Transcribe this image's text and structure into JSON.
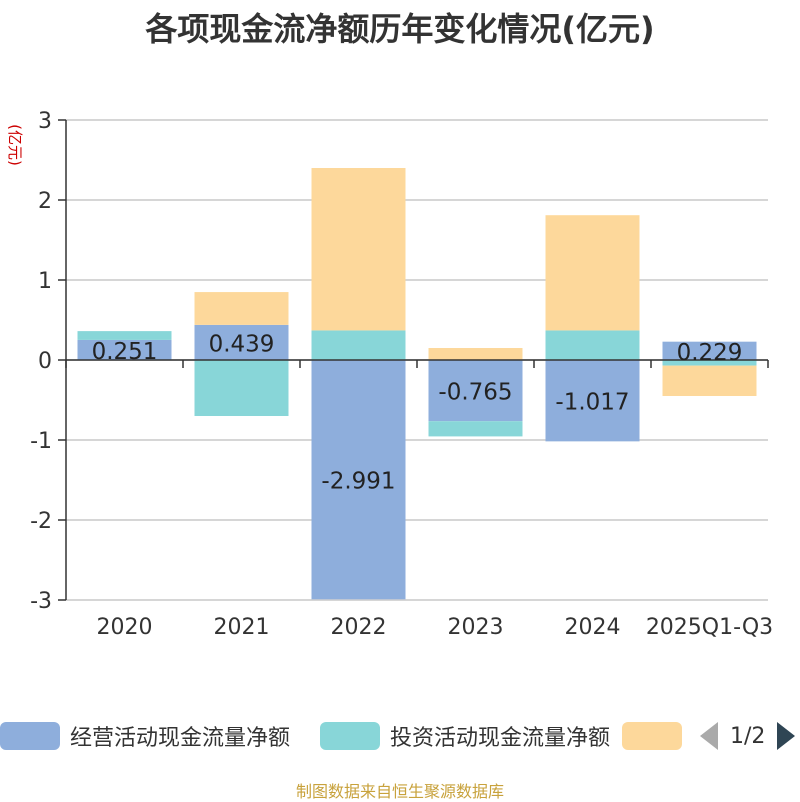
{
  "chart_data": {
    "type": "bar",
    "stacked": true,
    "title": "各项现金流净额历年变化情况(亿元)",
    "ylabel": "(亿元)",
    "ylim": [
      -3,
      3
    ],
    "yticks": [
      3,
      2,
      1,
      0,
      -1,
      -2,
      -3
    ],
    "categories": [
      "2020",
      "2021",
      "2022",
      "2023",
      "2024",
      "2025Q1-Q3"
    ],
    "series": [
      {
        "name": "经营活动现金流量净额",
        "color": "#8eaedc",
        "values": [
          0.251,
          0.439,
          -2.991,
          -0.765,
          -1.017,
          0.229
        ],
        "show_labels": true
      },
      {
        "name": "投资活动现金流量净额",
        "color": "#88d6d8",
        "values": [
          0.11,
          -0.7,
          0.37,
          -0.19,
          0.37,
          -0.07
        ],
        "show_labels": false
      },
      {
        "name": "",
        "color": "#fdd89b",
        "values": [
          0,
          0.41,
          2.03,
          0.15,
          1.44,
          -0.38
        ],
        "show_labels": false
      }
    ],
    "legend": {
      "position": "bottom",
      "page": "1/2"
    }
  },
  "source_text": "制图数据来自恒生聚源数据库"
}
